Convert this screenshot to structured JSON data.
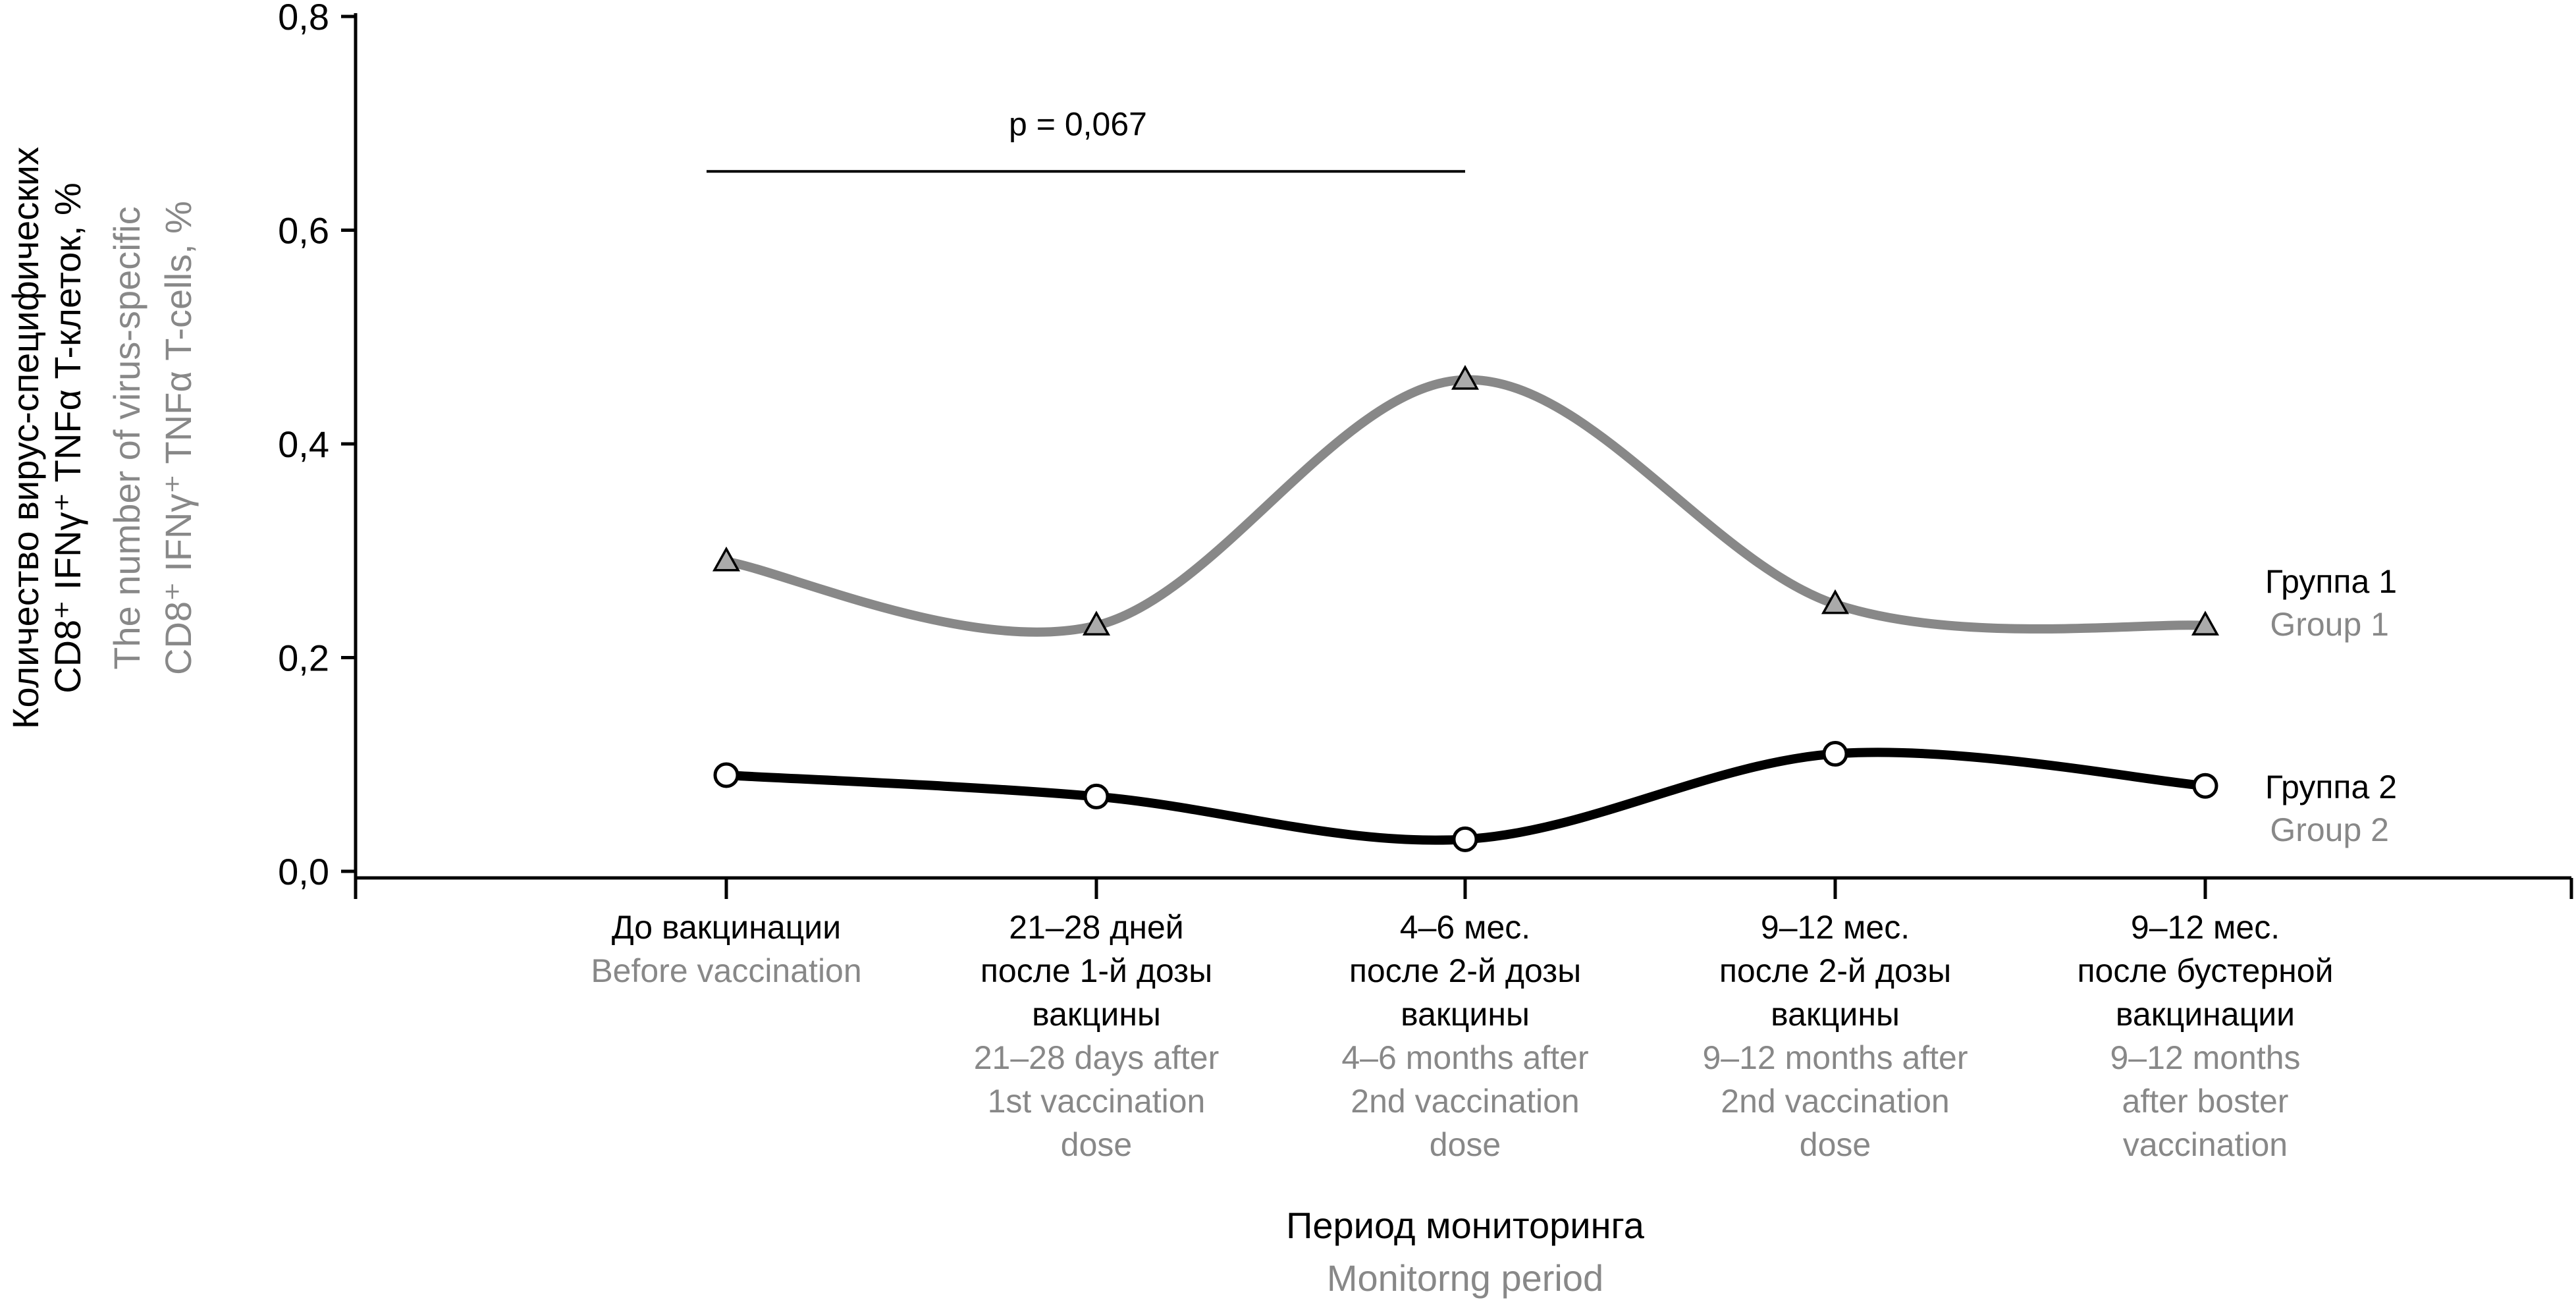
{
  "chart_data": {
    "type": "line",
    "categories": [
      {
        "ru": [
          "До вакцинации"
        ],
        "en": [
          "Before vaccination"
        ]
      },
      {
        "ru": [
          "21–28 дней",
          "после 1-й дозы",
          "вакцины"
        ],
        "en": [
          "21–28 days after",
          "1st vaccination",
          "dose"
        ]
      },
      {
        "ru": [
          "4–6 мес.",
          "после 2-й дозы",
          "вакцины"
        ],
        "en": [
          "4–6 months after",
          "2nd vaccination",
          "dose"
        ]
      },
      {
        "ru": [
          "9–12 мес.",
          "после 2-й дозы",
          "вакцины"
        ],
        "en": [
          "9–12 months after",
          "2nd vaccination",
          "dose"
        ]
      },
      {
        "ru": [
          "9–12 мес.",
          "после бустерной",
          "вакцинации"
        ],
        "en": [
          "9–12 months",
          "after boster",
          "vaccination"
        ]
      }
    ],
    "series": [
      {
        "name": "Группа 1",
        "name_en": "Group 1",
        "values": [
          0.29,
          0.23,
          0.46,
          0.25,
          0.23
        ],
        "color": "#888888",
        "marker": "triangle"
      },
      {
        "name": "Группа 2",
        "name_en": "Group 2",
        "values": [
          0.09,
          0.07,
          0.03,
          0.11,
          0.08
        ],
        "color": "#000000",
        "marker": "circle"
      }
    ],
    "ylim": [
      0,
      0.8
    ],
    "yticks": [
      {
        "value": 0,
        "label": "0,0"
      },
      {
        "value": 0.2,
        "label": "0,2"
      },
      {
        "value": 0.4,
        "label": "0,4"
      },
      {
        "value": 0.6,
        "label": "0,6"
      },
      {
        "value": 0.8,
        "label": "0,8"
      }
    ],
    "ylabel_ru": [
      "Количество вирус-специфических",
      "CD8⁺ IFNγ⁺ TNFα T-клеток, %"
    ],
    "ylabel_en": [
      "The number of virus-specific",
      "CD8⁺ IFNγ⁺ TNFα T-cells, %"
    ],
    "xlabel_ru": "Период мониторинга",
    "xlabel_en": "Monitorng period",
    "annotation": {
      "text": "p = 0,067",
      "from_category": 0,
      "to_category": 2,
      "y": 0.655
    },
    "grid": false,
    "legend": "right"
  }
}
